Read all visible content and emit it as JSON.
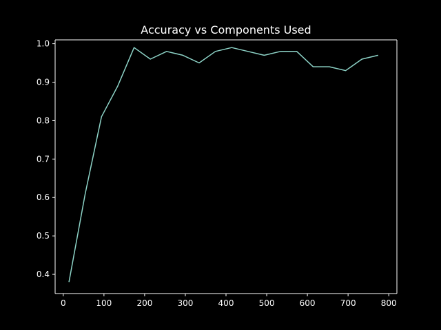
{
  "chart_data": {
    "type": "line",
    "title": "Accuracy vs Components Used",
    "xlabel": "",
    "ylabel": "",
    "xlim": [
      -20,
      820
    ],
    "ylim": [
      0.35,
      1.01
    ],
    "grid": false,
    "legend": "none",
    "x_ticks": [
      0,
      100,
      200,
      300,
      400,
      500,
      600,
      700,
      800
    ],
    "y_ticks": [
      0.4,
      0.5,
      0.6,
      0.7,
      0.8,
      0.9,
      1.0
    ],
    "x_tick_labels": [
      "0",
      "100",
      "200",
      "300",
      "400",
      "500",
      "600",
      "700",
      "800"
    ],
    "y_tick_labels": [
      "0.4",
      "0.5",
      "0.6",
      "0.7",
      "0.8",
      "0.9",
      "1.0"
    ],
    "series": [
      {
        "color": "#8dd3c7",
        "x": [
          14,
          54,
          94,
          134,
          174,
          214,
          254,
          294,
          334,
          374,
          414,
          454,
          494,
          534,
          574,
          614,
          654,
          694,
          734,
          774
        ],
        "y": [
          0.38,
          0.61,
          0.81,
          0.89,
          0.99,
          0.96,
          0.98,
          0.97,
          0.95,
          0.98,
          0.99,
          0.98,
          0.97,
          0.98,
          0.98,
          0.94,
          0.94,
          0.93,
          0.96,
          0.97
        ]
      }
    ]
  }
}
